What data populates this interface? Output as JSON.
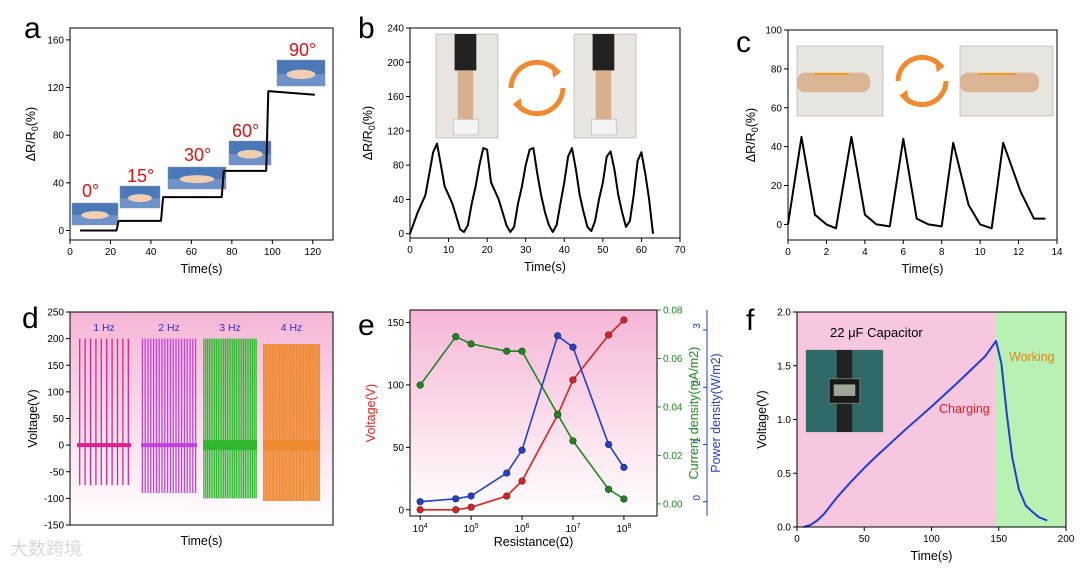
{
  "watermark": "大数跨境",
  "colors": {
    "red": "#e02020",
    "green": "#1a8a1a",
    "blue": "#1f3fd0",
    "magenta": "#e0208a",
    "violet": "#c040e0",
    "lime": "#30b830",
    "orange": "#f08a30",
    "pink": "#f7c6df",
    "green_bg": "#b9f0b3",
    "black": "#000000"
  },
  "chart_data": [
    {
      "panel": "a",
      "type": "line",
      "xlabel": "Time(s)",
      "ylabel": "ΔR/R0(%)",
      "xlim": [
        0,
        130
      ],
      "ylim": [
        -8,
        170
      ],
      "xticks": [
        "0",
        "20",
        "40",
        "60",
        "80",
        "100",
        "120"
      ],
      "yticks": [
        "0",
        "40",
        "80",
        "120",
        "160"
      ],
      "x": [
        5,
        23,
        24,
        45,
        46,
        75,
        76,
        97,
        98,
        121
      ],
      "values": [
        0,
        0,
        8,
        8,
        28,
        28,
        50,
        50,
        117,
        114
      ],
      "annotations": [
        "0°",
        "15°",
        "30°",
        "60°",
        "90°"
      ],
      "icon": "hand-photo-icon"
    },
    {
      "panel": "b",
      "type": "line",
      "xlabel": "Time(s)",
      "ylabel": "ΔR/R0(%)",
      "xlim": [
        0,
        70
      ],
      "ylim": [
        -5,
        240
      ],
      "xticks": [
        "0",
        "10",
        "20",
        "30",
        "40",
        "50",
        "60",
        "70"
      ],
      "yticks": [
        "0",
        "40",
        "80",
        "120",
        "160",
        "200",
        "240"
      ],
      "x": [
        0,
        2,
        4,
        5,
        6,
        7,
        8,
        9,
        10,
        11,
        12,
        13,
        14,
        15,
        16,
        17,
        18,
        19,
        20,
        21,
        22,
        23,
        24,
        25,
        26,
        27,
        28,
        29,
        30,
        31,
        32,
        33,
        34,
        35,
        36,
        37,
        38,
        39,
        40,
        41,
        42,
        43,
        44,
        45,
        46,
        47,
        48,
        49,
        50,
        51,
        52,
        53,
        54,
        55,
        56,
        57,
        58,
        59,
        60,
        61,
        62,
        63
      ],
      "values": [
        0,
        25,
        45,
        70,
        95,
        105,
        80,
        55,
        45,
        35,
        20,
        5,
        2,
        10,
        35,
        55,
        80,
        100,
        98,
        60,
        50,
        40,
        25,
        10,
        2,
        8,
        35,
        55,
        80,
        98,
        100,
        70,
        45,
        25,
        10,
        2,
        10,
        35,
        60,
        90,
        100,
        75,
        45,
        25,
        8,
        3,
        15,
        40,
        60,
        90,
        96,
        75,
        45,
        25,
        8,
        15,
        45,
        85,
        95,
        70,
        40,
        0
      ],
      "icon": "knee-photo-icon"
    },
    {
      "panel": "c",
      "type": "line",
      "xlabel": "Time(s)",
      "ylabel": "ΔR/R0(%)",
      "xlim": [
        0,
        14
      ],
      "ylim": [
        -8,
        100
      ],
      "xticks": [
        "0",
        "2",
        "4",
        "6",
        "8",
        "10",
        "12",
        "14"
      ],
      "yticks": [
        "0",
        "20",
        "40",
        "60",
        "80",
        "100"
      ],
      "x": [
        0,
        0.7,
        1.4,
        2.0,
        2.5,
        3.3,
        4.0,
        4.6,
        5.3,
        6.0,
        6.7,
        7.3,
        8.0,
        8.6,
        9.4,
        10.0,
        10.6,
        11.2,
        12.1,
        12.8,
        13.4
      ],
      "values": [
        0,
        45,
        5,
        0,
        -2,
        45,
        5,
        0,
        -1,
        44,
        3,
        0,
        -1,
        42,
        10,
        0,
        -2,
        42,
        17,
        3,
        3
      ],
      "icon": "wrist-photo-icon"
    },
    {
      "panel": "d",
      "type": "line",
      "xlabel": "Time(s)",
      "ylabel": "Voltage(V)",
      "ylim": [
        -150,
        250
      ],
      "yticks": [
        "-150",
        "-100",
        "-50",
        "0",
        "50",
        "100",
        "150",
        "200",
        "250"
      ],
      "series": [
        {
          "name": "1 Hz",
          "pulses": 10,
          "max": 200,
          "min": -75
        },
        {
          "name": "2 Hz",
          "pulses": 20,
          "max": 200,
          "min": -90
        },
        {
          "name": "3 Hz",
          "pulses": 30,
          "max": 200,
          "min": -100
        },
        {
          "name": "4 Hz",
          "pulses": 40,
          "max": 190,
          "min": -105
        }
      ]
    },
    {
      "panel": "e",
      "type": "line",
      "xlabel": "Resistance(Ω)",
      "ylabels": [
        "Voltage(V)",
        "Current density(mA/m2)",
        "Power density(W/m2)"
      ],
      "xticks": [
        "10^4",
        "10^5",
        "10^6",
        "10^7",
        "10^8"
      ],
      "yticks_left": [
        "0",
        "50",
        "100",
        "150"
      ],
      "yticks_right1": [
        "0.00",
        "0.02",
        "0.04",
        "0.06",
        "0.08"
      ],
      "yticks_right2": [
        "0",
        "1",
        "2",
        "3"
      ],
      "x": [
        10000.0,
        50000.0,
        100000.0,
        500000.0,
        1000000.0,
        5000000.0,
        10000000.0,
        50000000.0,
        100000000.0
      ],
      "series": [
        {
          "name": "Voltage(V)",
          "values": [
            0,
            0,
            2,
            11,
            23,
            76,
            104,
            140,
            152
          ]
        },
        {
          "name": "Current density(mA/m2)",
          "values": [
            0.049,
            0.069,
            0.066,
            0.063,
            0.063,
            0.037,
            0.026,
            0.006,
            0.002
          ]
        },
        {
          "name": "Power density(W/m2)",
          "values": [
            0.0,
            0.05,
            0.1,
            0.5,
            0.9,
            2.9,
            2.7,
            1.0,
            0.6
          ]
        }
      ]
    },
    {
      "panel": "f",
      "type": "line",
      "xlabel": "Time(s)",
      "ylabel": "Voltage(V)",
      "xlim": [
        0,
        200
      ],
      "ylim": [
        0,
        2.0
      ],
      "xticks": [
        "0",
        "50",
        "100",
        "150",
        "200"
      ],
      "yticks": [
        "0.0",
        "0.5",
        "1.0",
        "1.5",
        "2.0"
      ],
      "x": [
        5,
        10,
        15,
        20,
        30,
        40,
        50,
        60,
        80,
        100,
        120,
        140,
        148,
        152,
        156,
        160,
        165,
        170,
        175,
        180,
        186
      ],
      "values": [
        0,
        0.02,
        0.06,
        0.12,
        0.28,
        0.42,
        0.55,
        0.67,
        0.9,
        1.12,
        1.35,
        1.59,
        1.73,
        1.52,
        1.05,
        0.65,
        0.35,
        0.2,
        0.14,
        0.09,
        0.06
      ],
      "title": "22 μF Capacitor",
      "regions": [
        "Charging",
        "Working"
      ],
      "icon": "watch-photo-icon"
    }
  ],
  "letters": [
    "a",
    "b",
    "c",
    "d",
    "e",
    "f"
  ]
}
